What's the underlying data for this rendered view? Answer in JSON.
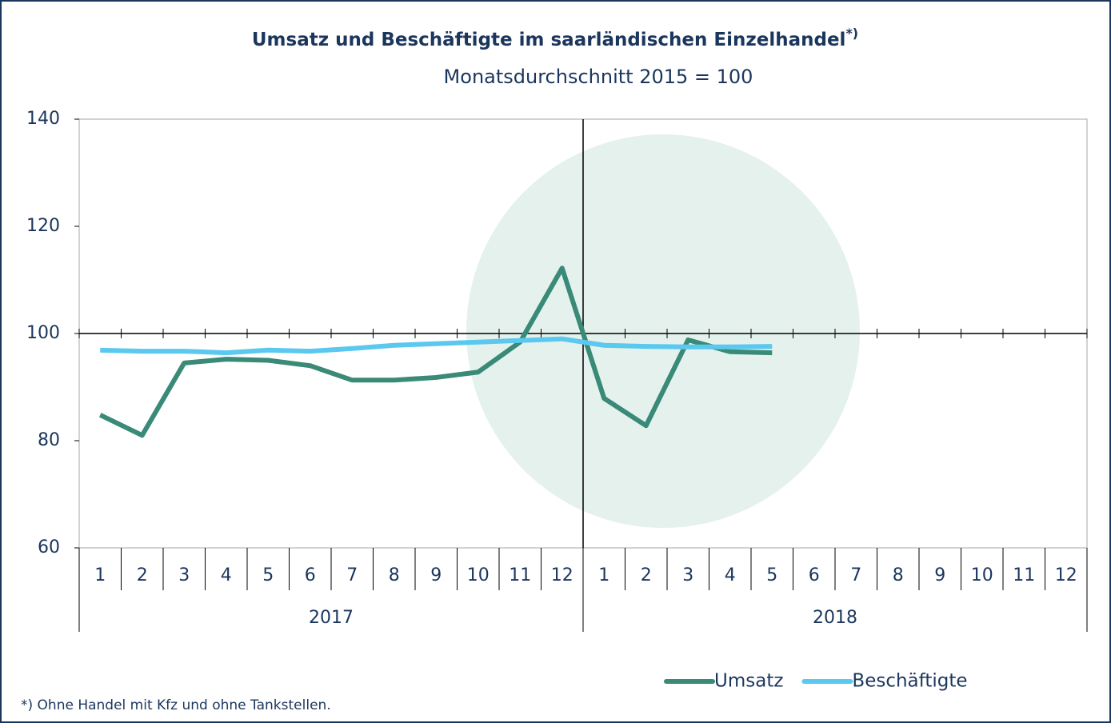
{
  "chart_data": {
    "type": "line",
    "title": "Umsatz und Beschäftigte im saarländischen Einzelhandel",
    "title_note": "*)",
    "subtitle": "Monatsdurchschnitt 2015 = 100",
    "footnote": "*) Ohne Handel mit Kfz und ohne Tankstellen.",
    "categories": [
      "1",
      "2",
      "3",
      "4",
      "5",
      "6",
      "7",
      "8",
      "9",
      "10",
      "11",
      "12",
      "1",
      "2",
      "3",
      "4",
      "5",
      "6",
      "7",
      "8",
      "9",
      "10",
      "11",
      "12"
    ],
    "years": [
      "2017",
      "2018"
    ],
    "series": [
      {
        "name": "Umsatz",
        "color": "#3a8a78",
        "values": [
          84.8,
          81.0,
          94.5,
          95.2,
          95.0,
          94.0,
          91.3,
          91.3,
          91.8,
          92.8,
          98.4,
          112.2,
          87.9,
          82.8,
          98.8,
          96.6,
          96.4,
          null,
          null,
          null,
          null,
          null,
          null,
          null
        ]
      },
      {
        "name": "Beschäftigte",
        "color": "#5bc8ef",
        "values": [
          96.9,
          96.7,
          96.7,
          96.4,
          96.9,
          96.7,
          97.2,
          97.8,
          98.1,
          98.4,
          98.7,
          99.0,
          97.8,
          97.6,
          97.5,
          97.5,
          97.6,
          null,
          null,
          null,
          null,
          null,
          null,
          null
        ]
      }
    ],
    "ylim": [
      60,
      140
    ],
    "yticks": [
      60,
      80,
      100,
      120,
      140
    ],
    "x_axis_cross": 100,
    "grid": false,
    "legend": "bottom-right"
  }
}
